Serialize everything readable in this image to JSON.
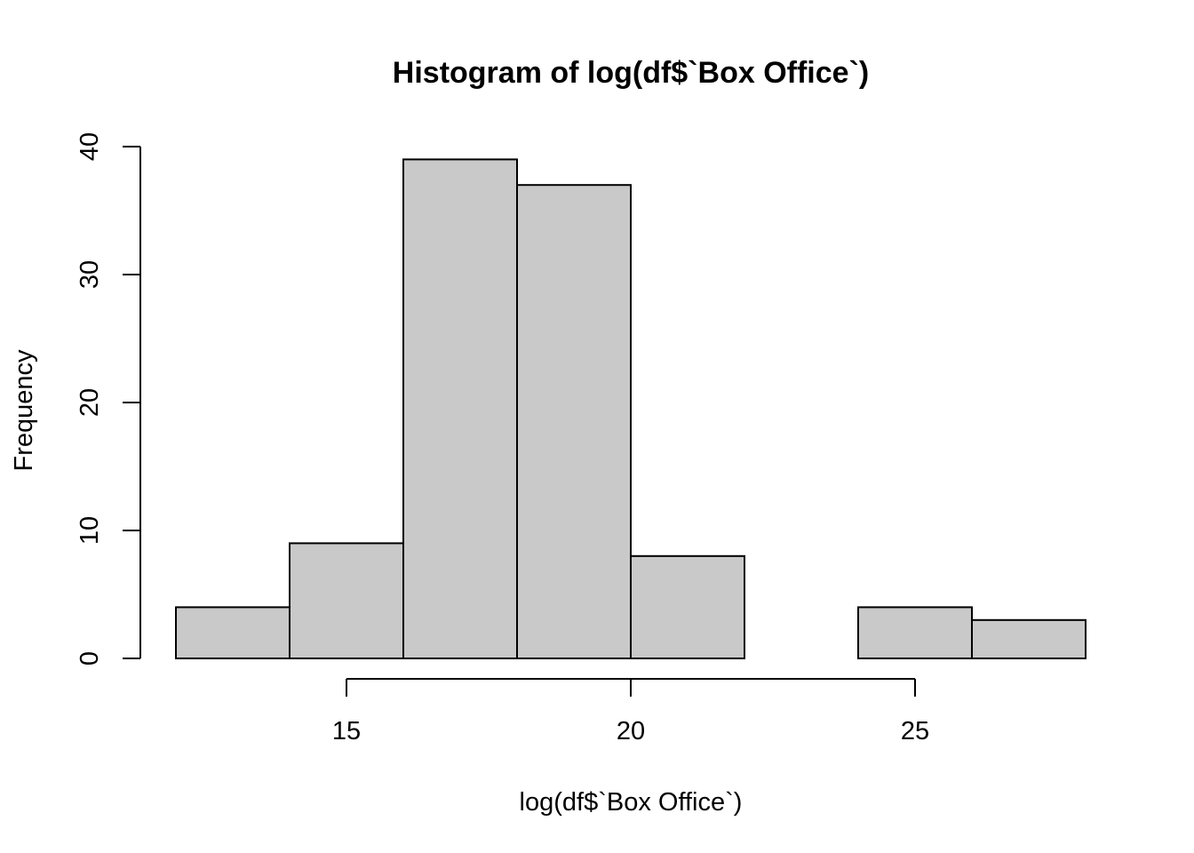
{
  "chart_data": {
    "type": "bar",
    "title": "Histogram of log(df$`Box Office`)",
    "xlabel": "log(df$`Box Office`)",
    "ylabel": "Frequency",
    "bins": [
      {
        "x0": 12,
        "x1": 14,
        "count": 4
      },
      {
        "x0": 14,
        "x1": 16,
        "count": 9
      },
      {
        "x0": 16,
        "x1": 18,
        "count": 39
      },
      {
        "x0": 18,
        "x1": 20,
        "count": 37
      },
      {
        "x0": 20,
        "x1": 22,
        "count": 8
      },
      {
        "x0": 22,
        "x1": 24,
        "count": 0
      },
      {
        "x0": 24,
        "x1": 26,
        "count": 4
      },
      {
        "x0": 26,
        "x1": 28,
        "count": 3
      }
    ],
    "xlim": [
      12,
      28
    ],
    "ylim": [
      0,
      40
    ],
    "x_ticks": [
      15,
      20,
      25
    ],
    "y_ticks": [
      0,
      10,
      20,
      30,
      40
    ],
    "bar_color": "#c9c9c9",
    "grid": false,
    "legend": "none"
  }
}
